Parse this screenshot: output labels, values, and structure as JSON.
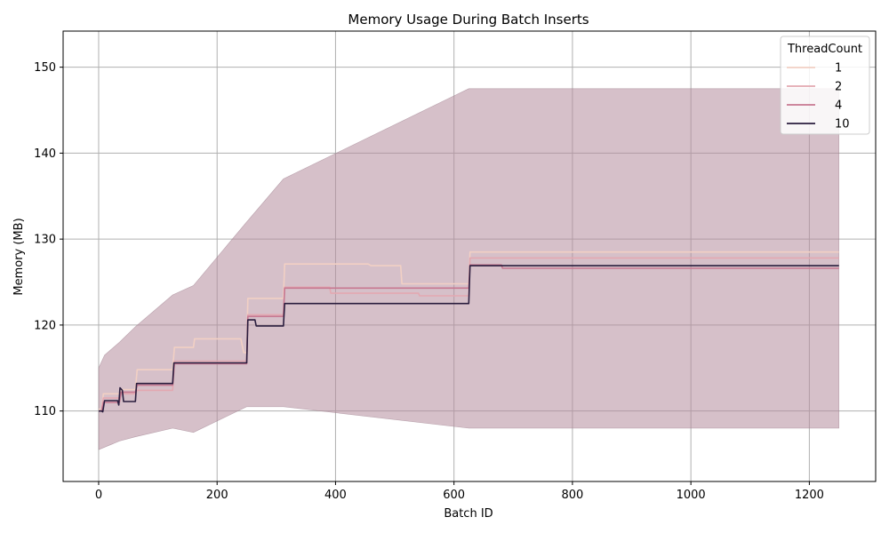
{
  "chart_data": {
    "type": "line",
    "title": "Memory Usage During Batch Inserts",
    "xlabel": "Batch ID",
    "ylabel": "Memory (MB)",
    "xlim": [
      -60,
      1312
    ],
    "ylim": [
      101.8,
      154.2
    ],
    "x_ticks": [
      0,
      200,
      400,
      600,
      800,
      1000,
      1200
    ],
    "y_ticks": [
      110,
      120,
      130,
      140,
      150
    ],
    "grid": true,
    "legend": {
      "title": "ThreadCount",
      "position": "top-right"
    },
    "band": {
      "color": "#b48c9c",
      "upper": [
        [
          0,
          115
        ],
        [
          10,
          116.5
        ],
        [
          35,
          118
        ],
        [
          62,
          119.8
        ],
        [
          125,
          123.5
        ],
        [
          160,
          124.6
        ],
        [
          250,
          132
        ],
        [
          312,
          137
        ],
        [
          625,
          147.5
        ],
        [
          1250,
          147.5
        ]
      ],
      "lower": [
        [
          0,
          105.5
        ],
        [
          35,
          106.5
        ],
        [
          62,
          107
        ],
        [
          125,
          108
        ],
        [
          160,
          107.5
        ],
        [
          250,
          110.5
        ],
        [
          312,
          110.5
        ],
        [
          625,
          108
        ],
        [
          1250,
          108
        ]
      ]
    },
    "series": [
      {
        "name": "1",
        "color": "#f2d0c4",
        "points": [
          [
            0,
            110.2
          ],
          [
            5,
            110.2
          ],
          [
            8,
            112
          ],
          [
            35,
            112
          ],
          [
            38,
            112.5
          ],
          [
            62,
            112.5
          ],
          [
            65,
            114.8
          ],
          [
            125,
            114.8
          ],
          [
            128,
            117.4
          ],
          [
            160,
            117.4
          ],
          [
            162,
            118.4
          ],
          [
            240,
            118.4
          ],
          [
            245,
            116.8
          ],
          [
            250,
            116.8
          ],
          [
            252,
            123.1
          ],
          [
            312,
            123.1
          ],
          [
            314,
            127.1
          ],
          [
            455,
            127.1
          ],
          [
            460,
            126.9
          ],
          [
            510,
            126.9
          ],
          [
            512,
            124.8
          ],
          [
            625,
            124.8
          ],
          [
            627,
            128.5
          ],
          [
            1250,
            128.5
          ]
        ]
      },
      {
        "name": "2",
        "color": "#e3a8b1",
        "points": [
          [
            0,
            110
          ],
          [
            5,
            110
          ],
          [
            8,
            111.5
          ],
          [
            35,
            111.5
          ],
          [
            38,
            112
          ],
          [
            62,
            112
          ],
          [
            65,
            112.4
          ],
          [
            125,
            112.4
          ],
          [
            128,
            115.8
          ],
          [
            250,
            115.8
          ],
          [
            252,
            121.2
          ],
          [
            312,
            121.2
          ],
          [
            314,
            124.4
          ],
          [
            390,
            124.4
          ],
          [
            392,
            123.7
          ],
          [
            540,
            123.7
          ],
          [
            542,
            123.4
          ],
          [
            625,
            123.4
          ],
          [
            627,
            127.8
          ],
          [
            1250,
            127.8
          ]
        ]
      },
      {
        "name": "4",
        "color": "#c77891",
        "points": [
          [
            0,
            110
          ],
          [
            5,
            110
          ],
          [
            8,
            111
          ],
          [
            35,
            111
          ],
          [
            38,
            112.2
          ],
          [
            62,
            112.2
          ],
          [
            65,
            113
          ],
          [
            125,
            113
          ],
          [
            128,
            115.5
          ],
          [
            250,
            115.5
          ],
          [
            252,
            121
          ],
          [
            312,
            121
          ],
          [
            314,
            124.3
          ],
          [
            625,
            124.3
          ],
          [
            627,
            127
          ],
          [
            680,
            127
          ],
          [
            682,
            126.6
          ],
          [
            1250,
            126.6
          ]
        ]
      },
      {
        "name": "10",
        "color": "#2a1d3e",
        "points": [
          [
            0,
            110
          ],
          [
            5,
            110
          ],
          [
            7,
            109.9
          ],
          [
            10,
            111.2
          ],
          [
            32,
            111.2
          ],
          [
            34,
            110.7
          ],
          [
            36,
            112.7
          ],
          [
            40,
            112.4
          ],
          [
            42,
            111.1
          ],
          [
            62,
            111.1
          ],
          [
            64,
            113.2
          ],
          [
            125,
            113.2
          ],
          [
            127,
            115.6
          ],
          [
            250,
            115.6
          ],
          [
            252,
            120.6
          ],
          [
            264,
            120.6
          ],
          [
            266,
            119.9
          ],
          [
            312,
            119.9
          ],
          [
            314,
            122.5
          ],
          [
            625,
            122.5
          ],
          [
            627,
            126.9
          ],
          [
            1250,
            126.9
          ]
        ]
      }
    ]
  }
}
